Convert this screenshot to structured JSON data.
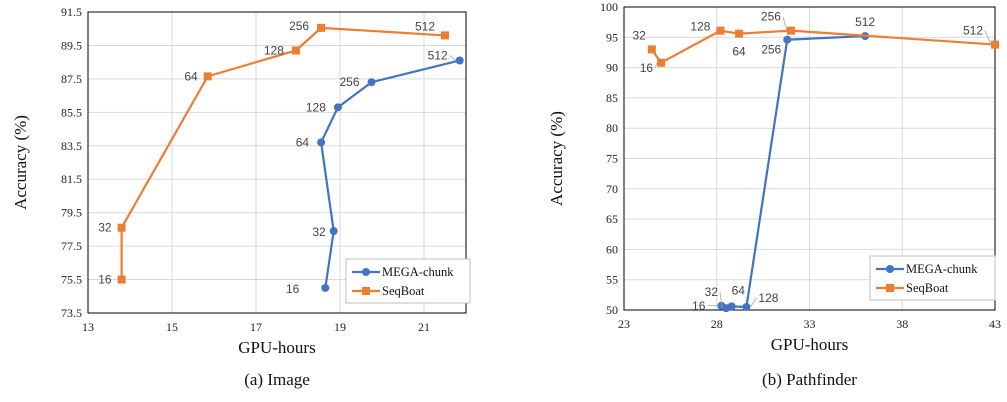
{
  "colors": {
    "mega": "#4472C4",
    "seqboat": "#ED7D31",
    "grid": "#D9D9D9",
    "axis": "#000000",
    "leader": "#A6A6A6"
  },
  "chart_data": [
    {
      "type": "line",
      "caption": "(a) Image",
      "xlabel": "GPU-hours",
      "ylabel": "Accuracy (%)",
      "xlim": [
        13,
        22
      ],
      "ylim": [
        73.5,
        91.5
      ],
      "xticks": [
        13,
        15,
        17,
        19,
        21
      ],
      "yticks": [
        73.5,
        75.5,
        77.5,
        79.5,
        81.5,
        83.5,
        85.5,
        87.5,
        89.5,
        91.5
      ],
      "ytick_labels": [
        "73.5",
        "75.5",
        "77.5",
        "79.5",
        "81.5",
        "83.5",
        "85.5",
        "87.5",
        "89.5",
        "91.5"
      ],
      "legend_position": "bottom-right",
      "grid": true,
      "series": [
        {
          "name": "MEGA-chunk",
          "marker": "circle",
          "points": [
            {
              "x": 18.65,
              "y": 75.0,
              "label": "16"
            },
            {
              "x": 18.85,
              "y": 78.4,
              "label": "32"
            },
            {
              "x": 18.55,
              "y": 83.7,
              "label": "64"
            },
            {
              "x": 18.95,
              "y": 85.8,
              "label": "128"
            },
            {
              "x": 19.75,
              "y": 87.3,
              "label": "256"
            },
            {
              "x": 21.85,
              "y": 88.6,
              "label": "512"
            }
          ]
        },
        {
          "name": "SeqBoat",
          "marker": "square",
          "points": [
            {
              "x": 13.8,
              "y": 75.5,
              "label": "16"
            },
            {
              "x": 13.8,
              "y": 78.6,
              "label": "32"
            },
            {
              "x": 15.85,
              "y": 87.65,
              "label": "64"
            },
            {
              "x": 17.95,
              "y": 89.2,
              "label": "128"
            },
            {
              "x": 18.55,
              "y": 90.55,
              "label": "256"
            },
            {
              "x": 21.5,
              "y": 90.1,
              "label": "512"
            }
          ]
        }
      ]
    },
    {
      "type": "line",
      "caption": "(b) Pathfinder",
      "xlabel": "GPU-hours",
      "ylabel": "Accuracy (%)",
      "xlim": [
        23,
        43
      ],
      "ylim": [
        50,
        100
      ],
      "xticks": [
        23,
        28,
        33,
        38,
        43
      ],
      "yticks": [
        50,
        55,
        60,
        65,
        70,
        75,
        80,
        85,
        90,
        95,
        100
      ],
      "ytick_labels": [
        "50",
        "55",
        "60",
        "65",
        "70",
        "75",
        "80",
        "85",
        "90",
        "95",
        "100"
      ],
      "legend_position": "bottom-right",
      "grid": true,
      "series": [
        {
          "name": "MEGA-chunk",
          "marker": "circle",
          "points": [
            {
              "x": 28.25,
              "y": 50.7,
              "label": "16"
            },
            {
              "x": 28.5,
              "y": 50.3,
              "label": "32"
            },
            {
              "x": 28.8,
              "y": 50.6,
              "label": "64"
            },
            {
              "x": 29.6,
              "y": 50.5,
              "label": "128"
            },
            {
              "x": 31.8,
              "y": 94.6,
              "label": "256"
            },
            {
              "x": 36.0,
              "y": 95.2,
              "label": "512"
            }
          ]
        },
        {
          "name": "SeqBoat",
          "marker": "square",
          "points": [
            {
              "x": 24.5,
              "y": 93.0,
              "label": "32"
            },
            {
              "x": 25.0,
              "y": 90.8,
              "label": "16"
            },
            {
              "x": 28.2,
              "y": 96.1,
              "label": "128"
            },
            {
              "x": 29.2,
              "y": 95.6,
              "label": "64"
            },
            {
              "x": 32.0,
              "y": 96.1,
              "label": "256"
            },
            {
              "x": 43.0,
              "y": 93.8,
              "label": "512"
            }
          ]
        }
      ]
    }
  ]
}
